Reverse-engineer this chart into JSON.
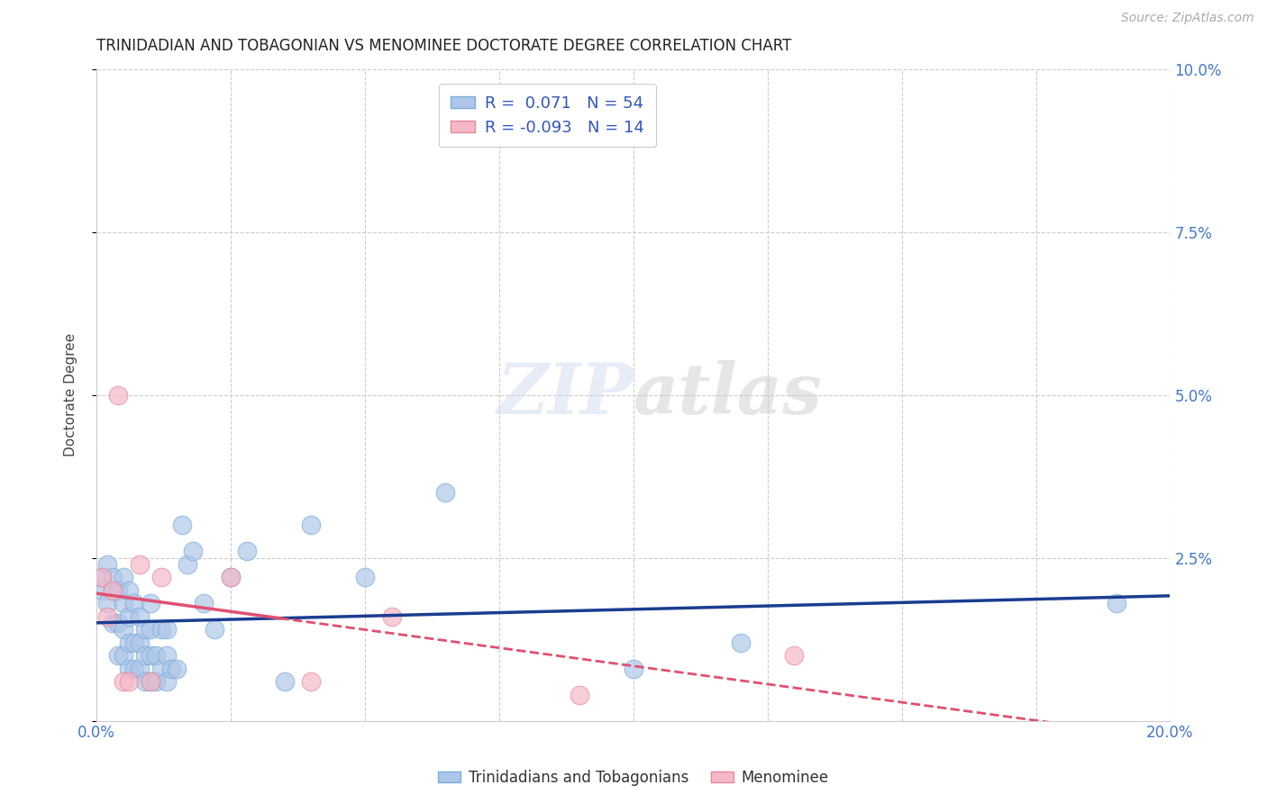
{
  "title": "TRINIDADIAN AND TOBAGONIAN VS MENOMINEE DOCTORATE DEGREE CORRELATION CHART",
  "source": "Source: ZipAtlas.com",
  "ylabel": "Doctorate Degree",
  "xlim": [
    0.0,
    0.2
  ],
  "ylim": [
    0.0,
    0.1
  ],
  "R_trini": 0.071,
  "N_trini": 54,
  "R_menom": -0.093,
  "N_menom": 14,
  "color_trini": "#aec6e8",
  "color_menom": "#f4b8c8",
  "edge_trini": "#7aaedc",
  "edge_menom": "#e8889a",
  "line_color_trini": "#1a3d8f",
  "line_color_menom": "#e05070",
  "trini_x": [
    0.001,
    0.001,
    0.002,
    0.002,
    0.003,
    0.003,
    0.003,
    0.004,
    0.004,
    0.004,
    0.005,
    0.005,
    0.005,
    0.005,
    0.006,
    0.006,
    0.006,
    0.006,
    0.007,
    0.007,
    0.007,
    0.008,
    0.008,
    0.008,
    0.009,
    0.009,
    0.009,
    0.01,
    0.01,
    0.01,
    0.01,
    0.011,
    0.011,
    0.012,
    0.012,
    0.013,
    0.013,
    0.013,
    0.014,
    0.015,
    0.016,
    0.017,
    0.018,
    0.02,
    0.022,
    0.025,
    0.028,
    0.035,
    0.04,
    0.05,
    0.065,
    0.1,
    0.12,
    0.19
  ],
  "trini_y": [
    0.02,
    0.022,
    0.018,
    0.024,
    0.015,
    0.02,
    0.022,
    0.01,
    0.015,
    0.02,
    0.01,
    0.014,
    0.018,
    0.022,
    0.008,
    0.012,
    0.016,
    0.02,
    0.008,
    0.012,
    0.018,
    0.008,
    0.012,
    0.016,
    0.006,
    0.01,
    0.014,
    0.006,
    0.01,
    0.014,
    0.018,
    0.006,
    0.01,
    0.008,
    0.014,
    0.006,
    0.01,
    0.014,
    0.008,
    0.008,
    0.03,
    0.024,
    0.026,
    0.018,
    0.014,
    0.022,
    0.026,
    0.006,
    0.03,
    0.022,
    0.035,
    0.008,
    0.012,
    0.018
  ],
  "menom_x": [
    0.001,
    0.002,
    0.003,
    0.004,
    0.005,
    0.006,
    0.008,
    0.01,
    0.012,
    0.025,
    0.04,
    0.055,
    0.09,
    0.13
  ],
  "menom_y": [
    0.022,
    0.016,
    0.02,
    0.05,
    0.006,
    0.006,
    0.024,
    0.006,
    0.022,
    0.022,
    0.006,
    0.016,
    0.004,
    0.01
  ]
}
